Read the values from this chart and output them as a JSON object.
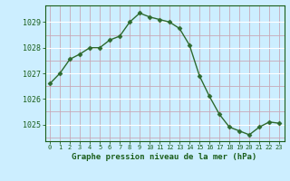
{
  "x": [
    0,
    1,
    2,
    3,
    4,
    5,
    6,
    7,
    8,
    9,
    10,
    11,
    12,
    13,
    14,
    15,
    16,
    17,
    18,
    19,
    20,
    21,
    22,
    23
  ],
  "y": [
    1026.6,
    1027.0,
    1027.55,
    1027.75,
    1028.0,
    1028.0,
    1028.3,
    1028.45,
    1029.0,
    1029.35,
    1029.2,
    1029.1,
    1029.0,
    1028.75,
    1028.1,
    1026.9,
    1026.1,
    1025.4,
    1024.9,
    1024.75,
    1024.6,
    1024.9,
    1025.1,
    1025.05
  ],
  "line_color": "#2d6a2d",
  "marker": "D",
  "marker_size": 2.5,
  "bg_color": "#cceeff",
  "grid_color_minor": "#c8a8b8",
  "grid_color_major": "#ffffff",
  "xlabel": "Graphe pression niveau de la mer (hPa)",
  "xlabel_color": "#1a5e1a",
  "tick_color": "#1a5e1a",
  "ylim": [
    1024.35,
    1029.65
  ],
  "yticks": [
    1025,
    1026,
    1027,
    1028,
    1029
  ],
  "xlim": [
    -0.5,
    23.5
  ],
  "xtick_labels": [
    "0",
    "1",
    "2",
    "3",
    "4",
    "5",
    "6",
    "7",
    "8",
    "9",
    "10",
    "11",
    "12",
    "13",
    "14",
    "15",
    "16",
    "17",
    "18",
    "19",
    "20",
    "21",
    "22",
    "23"
  ]
}
